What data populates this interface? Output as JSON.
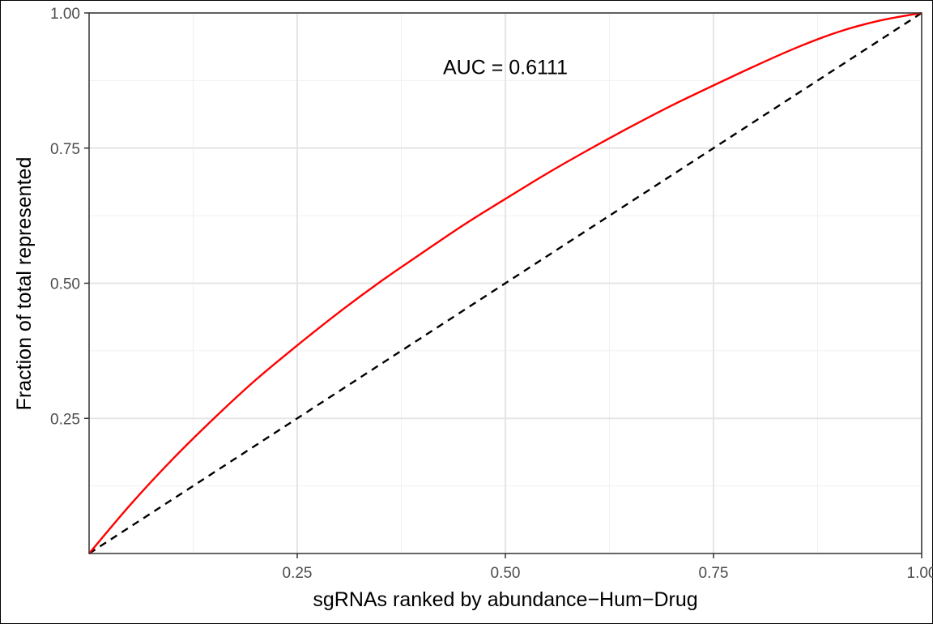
{
  "chart_data": {
    "type": "line",
    "title": "",
    "xlabel": "sgRNAs ranked by abundance−Hum−Drug",
    "ylabel": "Fraction of total represented",
    "xlim": [
      0,
      1
    ],
    "ylim": [
      0,
      1
    ],
    "x_ticks": [
      0.25,
      0.5,
      0.75,
      1.0
    ],
    "x_tick_labels": [
      "0.25",
      "0.50",
      "0.75",
      "1.00"
    ],
    "y_ticks": [
      0.25,
      0.5,
      0.75,
      1.0
    ],
    "y_tick_labels": [
      "0.25",
      "0.50",
      "0.75",
      "1.00"
    ],
    "grid": true,
    "legend": "none",
    "annotation": {
      "text": "AUC = 0.6111",
      "x": 0.5,
      "y": 0.9
    },
    "series": [
      {
        "color": "#ff0000",
        "style": "solid",
        "x": [
          0,
          0.05,
          0.1,
          0.15,
          0.2,
          0.25,
          0.3,
          0.35,
          0.4,
          0.45,
          0.5,
          0.55,
          0.6,
          0.65,
          0.7,
          0.75,
          0.8,
          0.85,
          0.9,
          0.95,
          1.0
        ],
        "y": [
          0,
          0.091,
          0.174,
          0.25,
          0.321,
          0.385,
          0.446,
          0.503,
          0.556,
          0.608,
          0.656,
          0.703,
          0.747,
          0.789,
          0.829,
          0.866,
          0.902,
          0.936,
          0.965,
          0.986,
          1.0
        ]
      },
      {
        "color": "#000000",
        "style": "dashed",
        "x": [
          0,
          1
        ],
        "y": [
          0,
          1
        ]
      }
    ]
  }
}
